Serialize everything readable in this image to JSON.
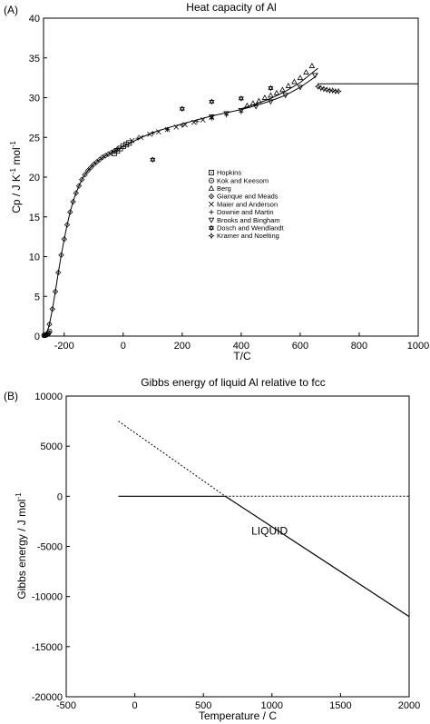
{
  "chart_data": [
    {
      "panel_label": "(A)",
      "type": "scatter",
      "title": "Heat capacity of Al",
      "xlabel": "T/C",
      "ylabel_main": "Cp / J K",
      "ylabel_sup1": "-1",
      "ylabel_mid": " mol",
      "ylabel_sup2": "-1",
      "xlim": [
        -270,
        1000
      ],
      "ylim": [
        0,
        40
      ],
      "xticks": [
        "-200",
        "0",
        "200",
        "400",
        "600",
        "800",
        "1000"
      ],
      "yticks": [
        "0",
        "5",
        "10",
        "15",
        "20",
        "25",
        "30",
        "35",
        "40"
      ],
      "grid": false,
      "legend_position": "center-right",
      "series": [
        {
          "name": "Hopkins",
          "marker": "square-dot",
          "x": [
            -30,
            -20,
            -10,
            0,
            10,
            20
          ],
          "y": [
            23.0,
            23.3,
            23.6,
            23.9,
            24.1,
            24.3
          ]
        },
        {
          "name": "Kok and Keesom",
          "marker": "circle-dot",
          "x": [
            -268,
            -265,
            -262,
            -259,
            -256,
            -253,
            -250
          ],
          "y": [
            0.1,
            0.1,
            0.15,
            0.2,
            0.3,
            0.4,
            0.6
          ]
        },
        {
          "name": "Berg",
          "marker": "triangle",
          "x": [
            420,
            440,
            460,
            480,
            500,
            520,
            540,
            560,
            580,
            600,
            620,
            640
          ],
          "y": [
            29.0,
            29.3,
            29.6,
            30.0,
            30.3,
            30.6,
            31.0,
            31.5,
            32.0,
            32.5,
            33.2,
            34.0
          ]
        },
        {
          "name": "Gianque and Meads",
          "marker": "diamond-dot",
          "x": [
            -250,
            -240,
            -230,
            -220,
            -210,
            -200,
            -190,
            -180,
            -170,
            -160,
            -150,
            -140,
            -130,
            -120,
            -110,
            -100,
            -90,
            -80,
            -70,
            -60,
            -50,
            -40,
            -30,
            -20
          ],
          "y": [
            1.5,
            3.4,
            5.6,
            8.0,
            10.2,
            12.2,
            14.0,
            15.6,
            16.9,
            18.0,
            18.9,
            19.7,
            20.3,
            20.8,
            21.2,
            21.6,
            21.9,
            22.2,
            22.5,
            22.7,
            22.9,
            23.1,
            23.3,
            23.5
          ]
        },
        {
          "name": "Maier and Anderson",
          "marker": "x",
          "x": [
            30,
            60,
            90,
            120,
            150,
            180,
            210,
            240,
            270,
            300
          ],
          "y": [
            24.6,
            25.0,
            25.4,
            25.7,
            26.0,
            26.3,
            26.6,
            26.9,
            27.2,
            27.5
          ]
        },
        {
          "name": "Downie and Martin",
          "marker": "plus",
          "x": [
            50,
            100,
            150,
            200,
            250,
            300,
            350,
            400
          ],
          "y": [
            24.9,
            25.5,
            26.0,
            26.5,
            27.0,
            27.4,
            27.8,
            28.2
          ]
        },
        {
          "name": "Brooks and Bingham",
          "marker": "triangle-down",
          "x": [
            300,
            350,
            400,
            450,
            500,
            550,
            600,
            650
          ],
          "y": [
            27.6,
            28.0,
            28.4,
            28.9,
            29.5,
            30.3,
            31.3,
            32.8
          ]
        },
        {
          "name": "Dosch and Wendlandt",
          "marker": "star",
          "x": [
            100,
            200,
            300,
            400,
            500
          ],
          "y": [
            22.2,
            28.6,
            29.5,
            29.9,
            31.2
          ]
        },
        {
          "name": "Kramer and Noelting",
          "marker": "four-star",
          "x": [
            660,
            670,
            680,
            690,
            700,
            710,
            720,
            730
          ],
          "y": [
            31.4,
            31.2,
            31.1,
            31.0,
            30.9,
            30.9,
            30.8,
            30.8
          ]
        }
      ],
      "lines": [
        {
          "x": [
            -270,
            -260,
            -250,
            -240,
            -230,
            -220,
            -210,
            -200,
            -190,
            -180,
            -170,
            -160,
            -150,
            -140,
            -130,
            -120,
            -110,
            -100,
            -80,
            -60,
            -40,
            -20,
            0,
            25,
            50,
            100,
            150,
            200,
            250,
            300,
            350,
            400,
            450,
            500,
            550,
            600,
            650,
            660
          ],
          "y": [
            0,
            0.3,
            1.5,
            3.4,
            5.6,
            8.0,
            10.2,
            12.2,
            14.0,
            15.6,
            16.9,
            18.0,
            18.9,
            19.7,
            20.3,
            20.8,
            21.2,
            21.6,
            22.2,
            22.7,
            23.1,
            23.5,
            23.9,
            24.3,
            24.8,
            25.6,
            26.2,
            26.7,
            27.2,
            27.7,
            28.1,
            28.5,
            29.0,
            29.6,
            30.3,
            31.3,
            32.6,
            33.1
          ]
        },
        {
          "x": [
            400,
            450,
            500,
            550,
            600,
            640,
            660
          ],
          "y": [
            28.6,
            29.2,
            29.9,
            30.8,
            31.9,
            33.1,
            33.7
          ]
        },
        {
          "x": [
            660,
            1000
          ],
          "y": [
            31.75,
            31.75
          ]
        }
      ]
    },
    {
      "panel_label": "(B)",
      "type": "line",
      "title": "Gibbs energy of liquid Al relative to fcc",
      "xlabel": "Temperature / C",
      "ylabel_main": "Gibbs energy / J mol",
      "ylabel_sup": "-1",
      "xlim": [
        -500,
        2000
      ],
      "ylim": [
        -20000,
        10000
      ],
      "xticks": [
        "-500",
        "0",
        "500",
        "1000",
        "1500",
        "2000"
      ],
      "yticks": [
        "-20000",
        "-15000",
        "-10000",
        "-5000",
        "0",
        "5000",
        "10000"
      ],
      "grid": false,
      "annotation": "LIQUID",
      "series": [
        {
          "style": "solid",
          "x": [
            -120,
            660
          ],
          "y": [
            0,
            0
          ]
        },
        {
          "style": "dotted",
          "x": [
            660,
            2000
          ],
          "y": [
            0,
            0
          ]
        },
        {
          "style": "dotted",
          "x": [
            -120,
            660
          ],
          "y": [
            7500,
            0
          ]
        },
        {
          "style": "solid",
          "x": [
            660,
            2000
          ],
          "y": [
            0,
            -12000
          ]
        }
      ]
    }
  ]
}
